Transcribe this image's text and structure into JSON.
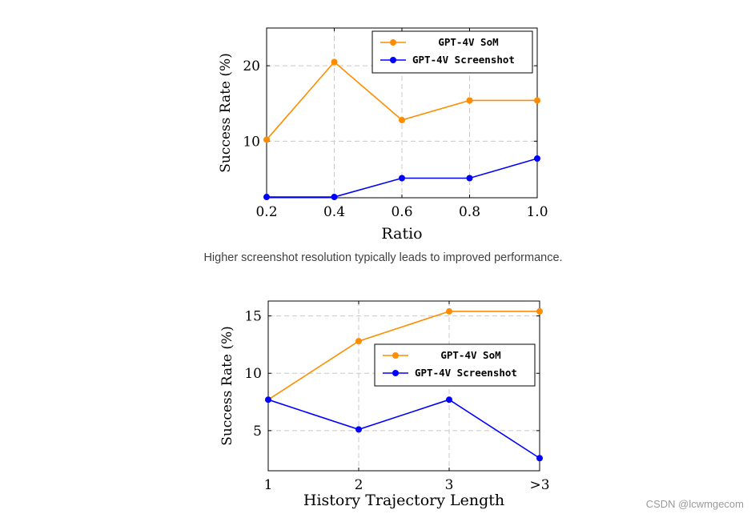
{
  "page": {
    "caption": "Higher screenshot resolution typically leads to improved performance.",
    "watermark": "CSDN @lcwmgecom"
  },
  "chart_data": [
    {
      "type": "line",
      "title": "",
      "xlabel": "Ratio",
      "ylabel": "Success Rate (%)",
      "x_ticks": [
        "0.2",
        "0.4",
        "0.6",
        "0.8",
        "1.0"
      ],
      "y_ticks": [
        10,
        20
      ],
      "xlim": [
        0.2,
        1.0
      ],
      "ylim": [
        2.5,
        25
      ],
      "grid": true,
      "legend_position": "top-right",
      "series": [
        {
          "name": "GPT-4V SoM",
          "color": "#ff8c00",
          "values": [
            10.2,
            20.5,
            12.8,
            15.4,
            15.4
          ]
        },
        {
          "name": "GPT-4V Screenshot",
          "color": "#0000ff",
          "values": [
            2.6,
            2.6,
            5.1,
            5.1,
            7.7
          ]
        }
      ]
    },
    {
      "type": "line",
      "title": "",
      "xlabel": "History Trajectory Length",
      "ylabel": "Success Rate (%)",
      "x_ticks": [
        "1",
        "2",
        "3",
        ">3"
      ],
      "y_ticks": [
        5,
        10,
        15
      ],
      "xlim": [
        0,
        3
      ],
      "ylim": [
        1.5,
        16.3
      ],
      "grid": true,
      "legend_position": "middle-right",
      "series": [
        {
          "name": "GPT-4V SoM",
          "color": "#ff8c00",
          "values": [
            7.7,
            12.8,
            15.4,
            15.4
          ]
        },
        {
          "name": "GPT-4V Screenshot",
          "color": "#0000ff",
          "values": [
            7.7,
            5.1,
            7.7,
            2.6
          ]
        }
      ]
    }
  ]
}
